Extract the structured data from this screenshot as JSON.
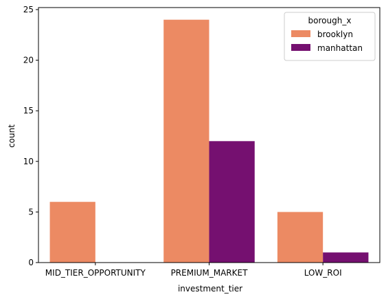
{
  "chart_data": {
    "type": "bar",
    "categories": [
      "MID_TIER_OPPORTUNITY",
      "PREMIUM_MARKET",
      "LOW_ROI"
    ],
    "series": [
      {
        "name": "brooklyn",
        "values": [
          6,
          24,
          5
        ],
        "color": "#ec8a63"
      },
      {
        "name": "manhattan",
        "values": [
          0,
          12,
          1
        ],
        "color": "#751070"
      }
    ],
    "xlabel": "investment_tier",
    "ylabel": "count",
    "ylim": [
      0,
      25.2
    ],
    "yticks": [
      0,
      5,
      10,
      15,
      20,
      25
    ],
    "legend": {
      "title": "borough_x",
      "position": "top-right"
    },
    "grid": false
  }
}
